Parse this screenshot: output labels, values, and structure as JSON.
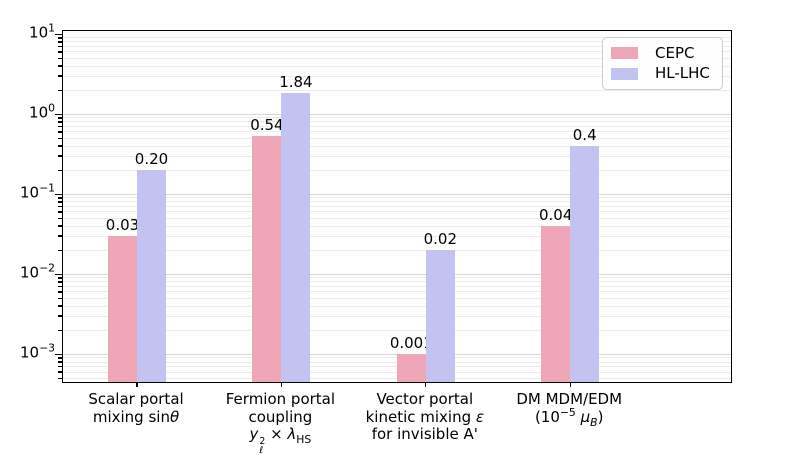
{
  "chart_data": {
    "type": "bar",
    "title": "",
    "yscale": "log",
    "ylim": [
      0.00045,
      10.96
    ],
    "grid": true,
    "legend_position": "upper right",
    "categories": [
      {
        "lines_html": [
          "Scalar portal",
          "mixing sin<i>θ</i>"
        ]
      },
      {
        "lines_html": [
          "Fermion portal",
          "coupling",
          "<i>y</i><span class=\"ss\"><span>2</span><span>ℓ</span></span> × <i>λ</i><sub>HS</sub>"
        ]
      },
      {
        "lines_html": [
          "Vector portal",
          "kinetic mixing <i>ε</i>",
          "for invisible A'"
        ]
      },
      {
        "lines_html": [
          "DM MDM/EDM",
          "(10<sup>−5</sup> <i>μ</i><sub><i>B</i></sub>)"
        ]
      }
    ],
    "series": [
      {
        "name": "CEPC",
        "color": "#efa6b6",
        "values": [
          0.03,
          0.54,
          0.001,
          0.04
        ],
        "bar_labels": [
          "0.03",
          "0.54",
          "0.001",
          "0.04"
        ]
      },
      {
        "name": "HL-LHC",
        "color": "#c3c3f1",
        "values": [
          0.2,
          1.84,
          0.02,
          0.4
        ],
        "bar_labels": [
          "0.20",
          "1.84",
          "0.02",
          "0.4"
        ]
      }
    ],
    "y_ticks": [
      {
        "html": "10<sup>1</sup>",
        "value": 10
      },
      {
        "html": "10<sup>0</sup>",
        "value": 1
      },
      {
        "html": "10<sup>−1</sup>",
        "value": 0.1
      },
      {
        "html": "10<sup>−2</sup>",
        "value": 0.01
      },
      {
        "html": "10<sup>−3</sup>",
        "value": 0.001
      }
    ]
  },
  "legend": {
    "items": [
      "CEPC",
      "HL-LHC"
    ]
  }
}
